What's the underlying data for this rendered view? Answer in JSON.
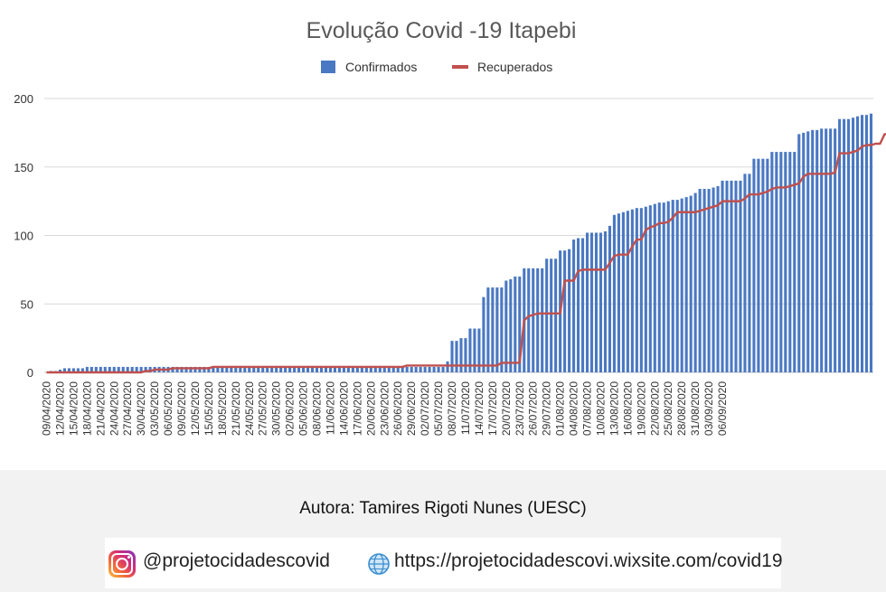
{
  "chart_data": {
    "type": "bar",
    "title": "Evolução Covid -19 Itapebi",
    "legend_position": "top",
    "ylim": [
      0,
      200
    ],
    "yticks": [
      0,
      50,
      100,
      150,
      200
    ],
    "grid": true,
    "x_start": "2020-04-09",
    "x_end": "2020-09-06",
    "tick_every_days": 3,
    "tick_labels": [
      "09/04/2020",
      "12/04/2020",
      "15/04/2020",
      "18/04/2020",
      "21/04/2020",
      "24/04/2020",
      "27/04/2020",
      "30/04/2020",
      "03/05/2020",
      "06/05/2020",
      "09/05/2020",
      "12/05/2020",
      "15/05/2020",
      "18/05/2020",
      "21/05/2020",
      "24/05/2020",
      "27/05/2020",
      "30/05/2020",
      "02/06/2020",
      "05/06/2020",
      "08/06/2020",
      "11/06/2020",
      "14/06/2020",
      "17/06/2020",
      "20/06/2020",
      "23/06/2020",
      "26/06/2020",
      "29/06/2020",
      "02/07/2020",
      "05/07/2020",
      "08/07/2020",
      "11/07/2020",
      "14/07/2020",
      "17/07/2020",
      "20/07/2020",
      "23/07/2020",
      "26/07/2020",
      "29/07/2020",
      "01/08/2020",
      "04/08/2020",
      "07/08/2020",
      "10/08/2020",
      "13/08/2020",
      "16/08/2020",
      "19/08/2020",
      "22/08/2020",
      "25/08/2020",
      "28/08/2020",
      "31/08/2020",
      "03/09/2020",
      "06/09/2020"
    ],
    "series": [
      {
        "name": "Confirmados",
        "kind": "bar",
        "color": "#4a78c2",
        "values": [
          0,
          1,
          1,
          2,
          3,
          3,
          3,
          3,
          3,
          4,
          4,
          4,
          4,
          4,
          4,
          4,
          4,
          4,
          4,
          4,
          4,
          4,
          4,
          4,
          4,
          4,
          4,
          4,
          4,
          4,
          4,
          4,
          4,
          4,
          4,
          4,
          4,
          4,
          4,
          4,
          4,
          4,
          4,
          4,
          4,
          4,
          4,
          4,
          4,
          4,
          4,
          4,
          4,
          4,
          4,
          4,
          4,
          4,
          4,
          4,
          4,
          4,
          4,
          4,
          4,
          4,
          4,
          4,
          4,
          4,
          4,
          4,
          4,
          4,
          4,
          4,
          4,
          4,
          4,
          4,
          4,
          4,
          4,
          4,
          4,
          4,
          4,
          4,
          4,
          8,
          23,
          23,
          25,
          25,
          32,
          32,
          32,
          55,
          62,
          62,
          62,
          62,
          67,
          68,
          70,
          70,
          76,
          76,
          76,
          76,
          76,
          83,
          83,
          83,
          89,
          89,
          90,
          97,
          98,
          98,
          102,
          102,
          102,
          102,
          103,
          107,
          115,
          116,
          117,
          118,
          119,
          120,
          120,
          121,
          122,
          123,
          124,
          124,
          125,
          126,
          126,
          127,
          128,
          129,
          131,
          134,
          134,
          134,
          135,
          136,
          140,
          140,
          140,
          140,
          140,
          145,
          145,
          156,
          156,
          156,
          156,
          161,
          161,
          161,
          161,
          161,
          161,
          174,
          175,
          176,
          177,
          177,
          178,
          178,
          178,
          178,
          185,
          185,
          185,
          186,
          187,
          188,
          188,
          189
        ]
      },
      {
        "name": "Recuperados",
        "kind": "line",
        "color": "#c0504d",
        "values": [
          0,
          0,
          0,
          0,
          0,
          0,
          0,
          0,
          0,
          0,
          0,
          0,
          0,
          0,
          0,
          0,
          0,
          0,
          0,
          0,
          0,
          0,
          1,
          1,
          2,
          2,
          2,
          2,
          3,
          3,
          3,
          3,
          3,
          3,
          3,
          3,
          3,
          4,
          4,
          4,
          4,
          4,
          4,
          4,
          4,
          4,
          4,
          4,
          4,
          4,
          4,
          4,
          4,
          4,
          4,
          4,
          4,
          4,
          4,
          4,
          4,
          4,
          4,
          4,
          4,
          4,
          4,
          4,
          4,
          4,
          4,
          4,
          4,
          4,
          4,
          4,
          4,
          4,
          4,
          4,
          5,
          5,
          5,
          5,
          5,
          5,
          5,
          5,
          5,
          5,
          5,
          5,
          5,
          5,
          5,
          5,
          5,
          5,
          5,
          5,
          5,
          7,
          7,
          7,
          7,
          7,
          38,
          41,
          42,
          43,
          43,
          43,
          43,
          43,
          43,
          67,
          67,
          67,
          74,
          75,
          75,
          75,
          75,
          75,
          75,
          80,
          85,
          86,
          86,
          86,
          92,
          97,
          97,
          104,
          106,
          107,
          109,
          109,
          110,
          113,
          117,
          117,
          117,
          117,
          117,
          118,
          119,
          120,
          121,
          122,
          125,
          125,
          125,
          125,
          125,
          127,
          130,
          130,
          130,
          131,
          132,
          134,
          135,
          135,
          135,
          136,
          137,
          138,
          143,
          145,
          145,
          145,
          145,
          145,
          145,
          146,
          160,
          160,
          160,
          161,
          162,
          165,
          166,
          166,
          167,
          167,
          174,
          174,
          174,
          175,
          180,
          180,
          181,
          181
        ]
      }
    ]
  },
  "footer": {
    "author": "Autora: Tamires Rigoti Nunes (UESC)",
    "instagram_icon": "instagram-icon",
    "instagram_handle": "@projetocidadescovid",
    "globe_icon": "globe-icon",
    "website": "https://projetocidadescovi.wixsite.com/covid19"
  }
}
